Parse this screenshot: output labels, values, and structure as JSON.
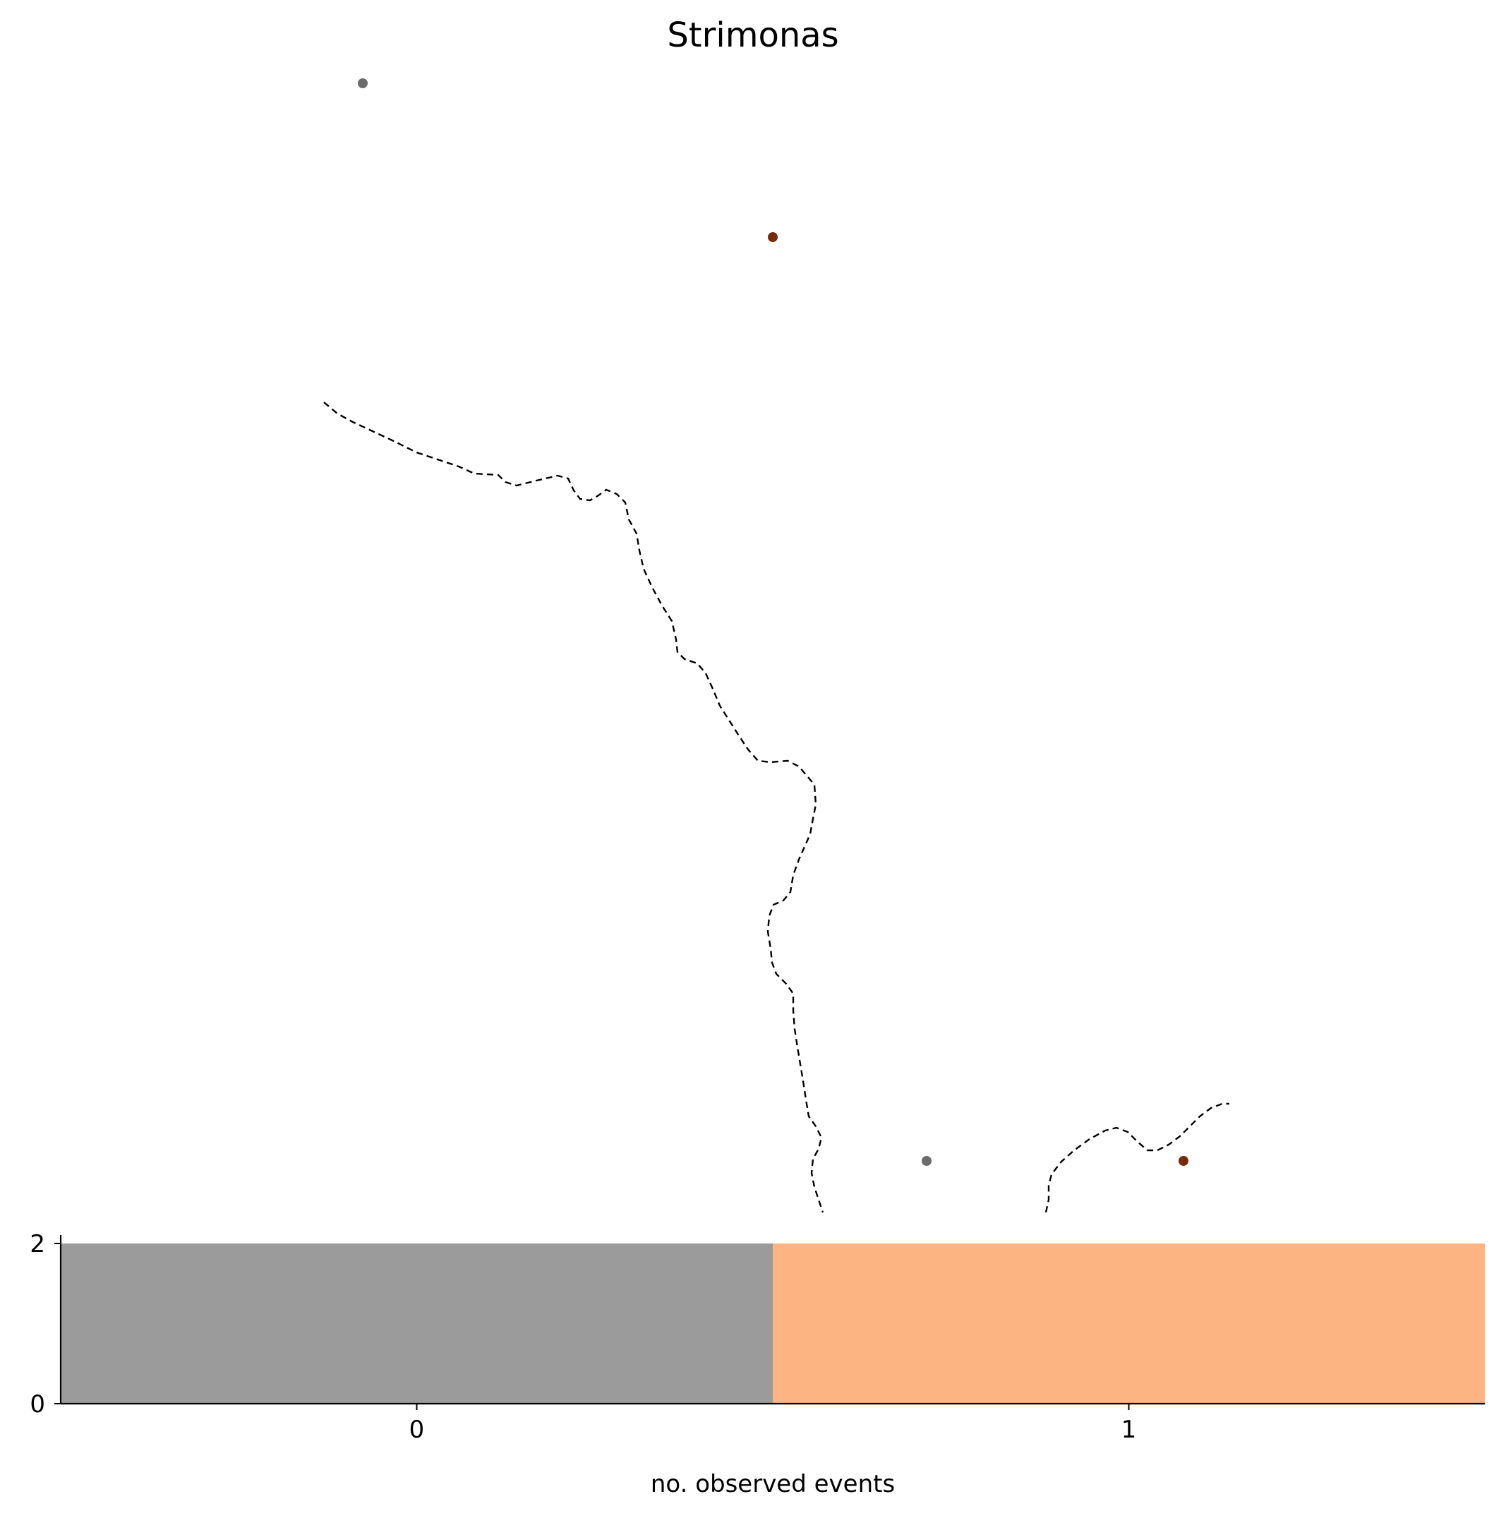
{
  "title": "Strimonas",
  "map": {
    "border_color": "#000000",
    "sites": [
      {
        "label": "",
        "category": "0",
        "color": "#6b6b6b"
      },
      {
        "label": "",
        "category": "1",
        "color": "#7a2a0c"
      },
      {
        "label": "",
        "category": "0",
        "color": "#6b6b6b"
      },
      {
        "label": "",
        "category": "1",
        "color": "#7a2a0c"
      }
    ]
  },
  "chart_data": {
    "type": "bar",
    "xlabel": "no. observed events",
    "ylabel": "",
    "categories": [
      "0",
      "1"
    ],
    "values": [
      2,
      2
    ],
    "colors": [
      "#9b9b9b",
      "#fbb482"
    ],
    "ylim": [
      0,
      2
    ],
    "yticks": [
      "0",
      "2"
    ],
    "xlim": [
      -0.5,
      1.5
    ],
    "grid": false
  }
}
